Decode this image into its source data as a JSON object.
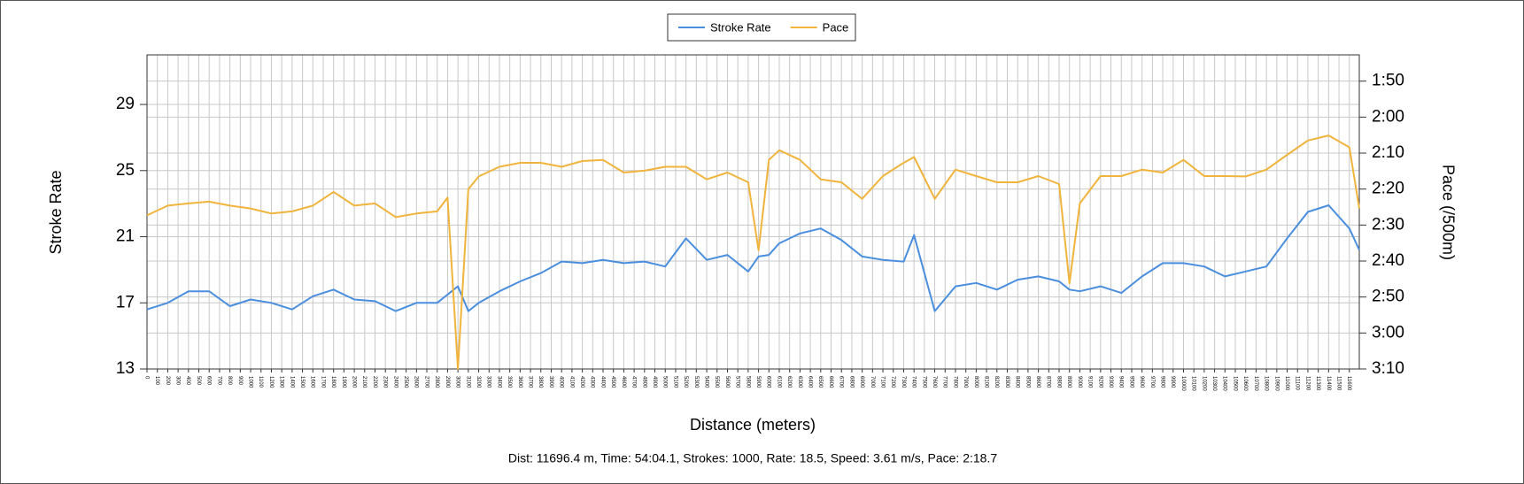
{
  "chart_data": {
    "type": "line",
    "legend": "top",
    "x_label": "Distance (meters)",
    "y_label": "Stroke Rate",
    "y2_label": "Pace (/500m)",
    "footer": "Dist: 11696.4 m, Time: 54:04.1, Strokes: 1000, Rate: 18.5, Speed: 3.61 m/s, Pace: 2:18.7",
    "grid": true,
    "x": [
      0,
      200,
      400,
      600,
      800,
      1000,
      1200,
      1400,
      1600,
      1800,
      2000,
      2200,
      2400,
      2600,
      2800,
      2900,
      3000,
      3100,
      3200,
      3400,
      3600,
      3800,
      4000,
      4200,
      4400,
      4600,
      4800,
      5000,
      5200,
      5400,
      5600,
      5800,
      5900,
      6000,
      6100,
      6300,
      6500,
      6700,
      6900,
      7100,
      7300,
      7400,
      7600,
      7800,
      8000,
      8200,
      8400,
      8600,
      8800,
      8900,
      9000,
      9200,
      9400,
      9600,
      9800,
      10000,
      10200,
      10400,
      10600,
      10800,
      11000,
      11200,
      11400,
      11600,
      11696
    ],
    "series": [
      {
        "name": "Stroke Rate",
        "color": "#4a8ede",
        "axis": "y",
        "values": [
          16.6,
          17.0,
          17.7,
          17.7,
          16.8,
          17.2,
          17.0,
          16.6,
          17.4,
          17.8,
          17.2,
          17.1,
          16.5,
          17.0,
          17.0,
          17.5,
          18.0,
          16.5,
          17.0,
          17.7,
          18.3,
          18.8,
          19.5,
          19.4,
          19.6,
          19.4,
          19.5,
          19.2,
          20.9,
          19.6,
          19.9,
          18.9,
          19.8,
          19.9,
          20.6,
          21.2,
          21.5,
          20.8,
          19.8,
          19.6,
          19.5,
          21.1,
          16.5,
          18.0,
          18.2,
          17.8,
          18.4,
          18.6,
          18.3,
          17.8,
          17.7,
          18.0,
          17.6,
          18.6,
          19.4,
          19.4,
          19.2,
          18.6,
          18.9,
          19.2,
          20.9,
          22.5,
          22.9,
          21.5,
          20.2
        ]
      },
      {
        "name": "Pace",
        "color": "#f0b43c",
        "axis": "y2",
        "values": [
          147.3,
          144.6,
          144,
          143.5,
          144.6,
          145.4,
          146.8,
          146.2,
          144.6,
          140.8,
          144.6,
          144,
          147.8,
          146.8,
          146.2,
          142.4,
          190,
          140,
          136.5,
          133.8,
          132.7,
          132.7,
          133.8,
          132.2,
          131.9,
          135.4,
          134.9,
          133.8,
          133.8,
          137.3,
          135.4,
          138.1,
          157,
          131.9,
          129.2,
          131.9,
          137.3,
          138.1,
          142.7,
          136.4,
          132.7,
          131.1,
          142.7,
          134.6,
          136.4,
          138.1,
          138.1,
          136.4,
          138.6,
          166.2,
          144,
          136.4,
          136.4,
          134.6,
          135.4,
          131.9,
          136.4,
          136.4,
          136.5,
          134.6,
          130.5,
          126.5,
          125.1,
          128.4,
          145.4
        ]
      }
    ],
    "xlim": [
      0,
      11696
    ],
    "xticks": [
      0,
      100,
      200,
      300,
      400,
      500,
      600,
      700,
      800,
      900,
      1000,
      1100,
      1200,
      1300,
      1400,
      1500,
      1600,
      1700,
      1800,
      1900,
      2000,
      2100,
      2200,
      2300,
      2400,
      2500,
      2600,
      2700,
      2800,
      2900,
      3000,
      3100,
      3200,
      3300,
      3400,
      3500,
      3600,
      3700,
      3800,
      3900,
      4000,
      4100,
      4200,
      4300,
      4400,
      4500,
      4600,
      4700,
      4800,
      4900,
      5000,
      5100,
      5200,
      5300,
      5400,
      5500,
      5600,
      5700,
      5800,
      5900,
      6000,
      6100,
      6200,
      6300,
      6400,
      6500,
      6600,
      6700,
      6800,
      6900,
      7000,
      7100,
      7200,
      7300,
      7400,
      7500,
      7600,
      7700,
      7800,
      7900,
      8000,
      8100,
      8200,
      8300,
      8400,
      8500,
      8600,
      8700,
      8800,
      8900,
      9000,
      9100,
      9200,
      9300,
      9400,
      9500,
      9600,
      9700,
      9800,
      9900,
      10000,
      10100,
      10200,
      10300,
      10400,
      10500,
      10600,
      10700,
      10800,
      10900,
      11000,
      11100,
      11200,
      11300,
      11400,
      11500,
      11600
    ],
    "ylim": [
      13,
      32
    ],
    "yticks": [
      13,
      17,
      21,
      25,
      29
    ],
    "y2lim": [
      190,
      102.7
    ],
    "y2ticks": [
      {
        "value": 110,
        "label": "1:50"
      },
      {
        "value": 120,
        "label": "2:00"
      },
      {
        "value": 130,
        "label": "2:10"
      },
      {
        "value": 140,
        "label": "2:20"
      },
      {
        "value": 150,
        "label": "2:30"
      },
      {
        "value": 160,
        "label": "2:40"
      },
      {
        "value": 170,
        "label": "2:50"
      },
      {
        "value": 180,
        "label": "3:00"
      },
      {
        "value": 190,
        "label": "3:10"
      }
    ]
  }
}
